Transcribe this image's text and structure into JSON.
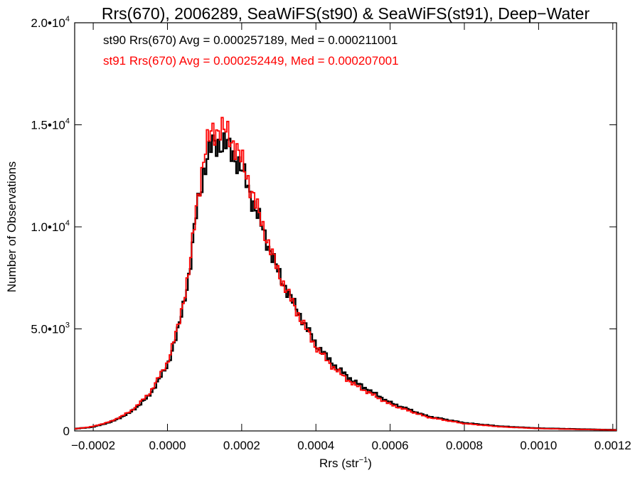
{
  "chart_data": {
    "type": "line",
    "title": "Rrs(670), 2006289, SeaWiFS(st90) & SeaWiFS(st91), Deep−Water",
    "xlabel_main": "Rrs (str",
    "xlabel_sup": "−1",
    "xlabel_close": ")",
    "ylabel": "Number of Observations",
    "xlim": [
      -0.00025,
      0.00121
    ],
    "ylim": [
      0,
      20000
    ],
    "x_ticks": [
      {
        "value": -0.0002,
        "label": "−0.0002"
      },
      {
        "value": 0.0,
        "label": "0.0000"
      },
      {
        "value": 0.0002,
        "label": "0.0002"
      },
      {
        "value": 0.0004,
        "label": "0.0004"
      },
      {
        "value": 0.0006,
        "label": "0.0006"
      },
      {
        "value": 0.0008,
        "label": "0.0008"
      },
      {
        "value": 0.001,
        "label": "0.0010"
      },
      {
        "value": 0.0012,
        "label": "0.0012"
      }
    ],
    "y_ticks": [
      {
        "value": 0,
        "label": "0",
        "exp": ""
      },
      {
        "value": 5000,
        "label": "5.0•10",
        "exp": "3"
      },
      {
        "value": 10000,
        "label": "1.0•10",
        "exp": "4"
      },
      {
        "value": 15000,
        "label": "1.5•10",
        "exp": "4"
      },
      {
        "value": 20000,
        "label": "2.0•10",
        "exp": "4"
      }
    ],
    "annotations": [
      {
        "name": "st90",
        "text": "st90 Rrs(670) Avg = 0.000257189, Med = 0.000211001",
        "color": "#000000"
      },
      {
        "name": "st91",
        "text": "st91 Rrs(670) Avg = 0.000252449, Med = 0.000207001",
        "color": "#ff0000"
      }
    ],
    "grid": false,
    "series": [
      {
        "color": "#000000",
        "step": true,
        "x": [
          -0.00025,
          -0.0002,
          -0.00015,
          -0.0001,
          -5e-05,
          0.0,
          3e-05,
          6e-05,
          8e-05,
          0.0001,
          0.00012,
          0.00014,
          0.00016,
          0.00018,
          0.0002,
          0.00022,
          0.00025,
          0.0003,
          0.00035,
          0.0004,
          0.00045,
          0.0005,
          0.0006,
          0.0007,
          0.0008,
          0.0009,
          0.001,
          0.0011,
          0.00121
        ],
        "y": [
          100,
          200,
          450,
          900,
          1700,
          3200,
          5000,
          7800,
          11000,
          12900,
          14000,
          14100,
          14000,
          13500,
          12800,
          11800,
          10200,
          7700,
          5900,
          4250,
          3200,
          2450,
          1380,
          720,
          390,
          220,
          130,
          90,
          50
        ]
      },
      {
        "color": "#ff0000",
        "step": true,
        "x": [
          -0.00025,
          -0.0002,
          -0.00015,
          -0.0001,
          -5e-05,
          0.0,
          3e-05,
          6e-05,
          8e-05,
          0.0001,
          0.00012,
          0.00014,
          0.00016,
          0.00018,
          0.0002,
          0.00022,
          0.00025,
          0.0003,
          0.00035,
          0.0004,
          0.00045,
          0.0005,
          0.0006,
          0.0007,
          0.0008,
          0.0009,
          0.001,
          0.0011,
          0.00121
        ],
        "y": [
          100,
          220,
          480,
          950,
          1800,
          3350,
          5200,
          8000,
          11300,
          13600,
          14700,
          14800,
          14600,
          14100,
          13200,
          12200,
          10400,
          7700,
          5800,
          4100,
          3050,
          2300,
          1300,
          680,
          360,
          200,
          120,
          80,
          45
        ]
      }
    ]
  }
}
